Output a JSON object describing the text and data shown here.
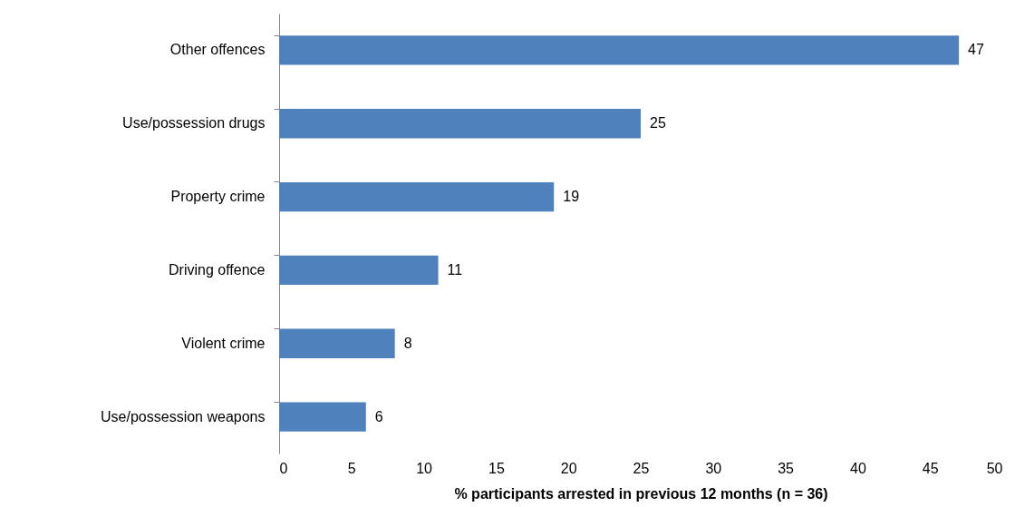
{
  "chart_data": {
    "type": "bar",
    "orientation": "horizontal",
    "categories": [
      "Other offences",
      "Use/possession drugs",
      "Property crime",
      "Driving offence",
      "Violent crime",
      "Use/possession weapons"
    ],
    "values": [
      47,
      25,
      19,
      11,
      8,
      6
    ],
    "color": "#4f81bd",
    "xlim": [
      0,
      50
    ],
    "xticks": [
      0,
      5,
      10,
      15,
      20,
      25,
      30,
      35,
      40,
      45,
      50
    ],
    "xlabel": "% participants arrested in previous 12 months (n = 36)",
    "data_labels": true,
    "grid": false
  }
}
